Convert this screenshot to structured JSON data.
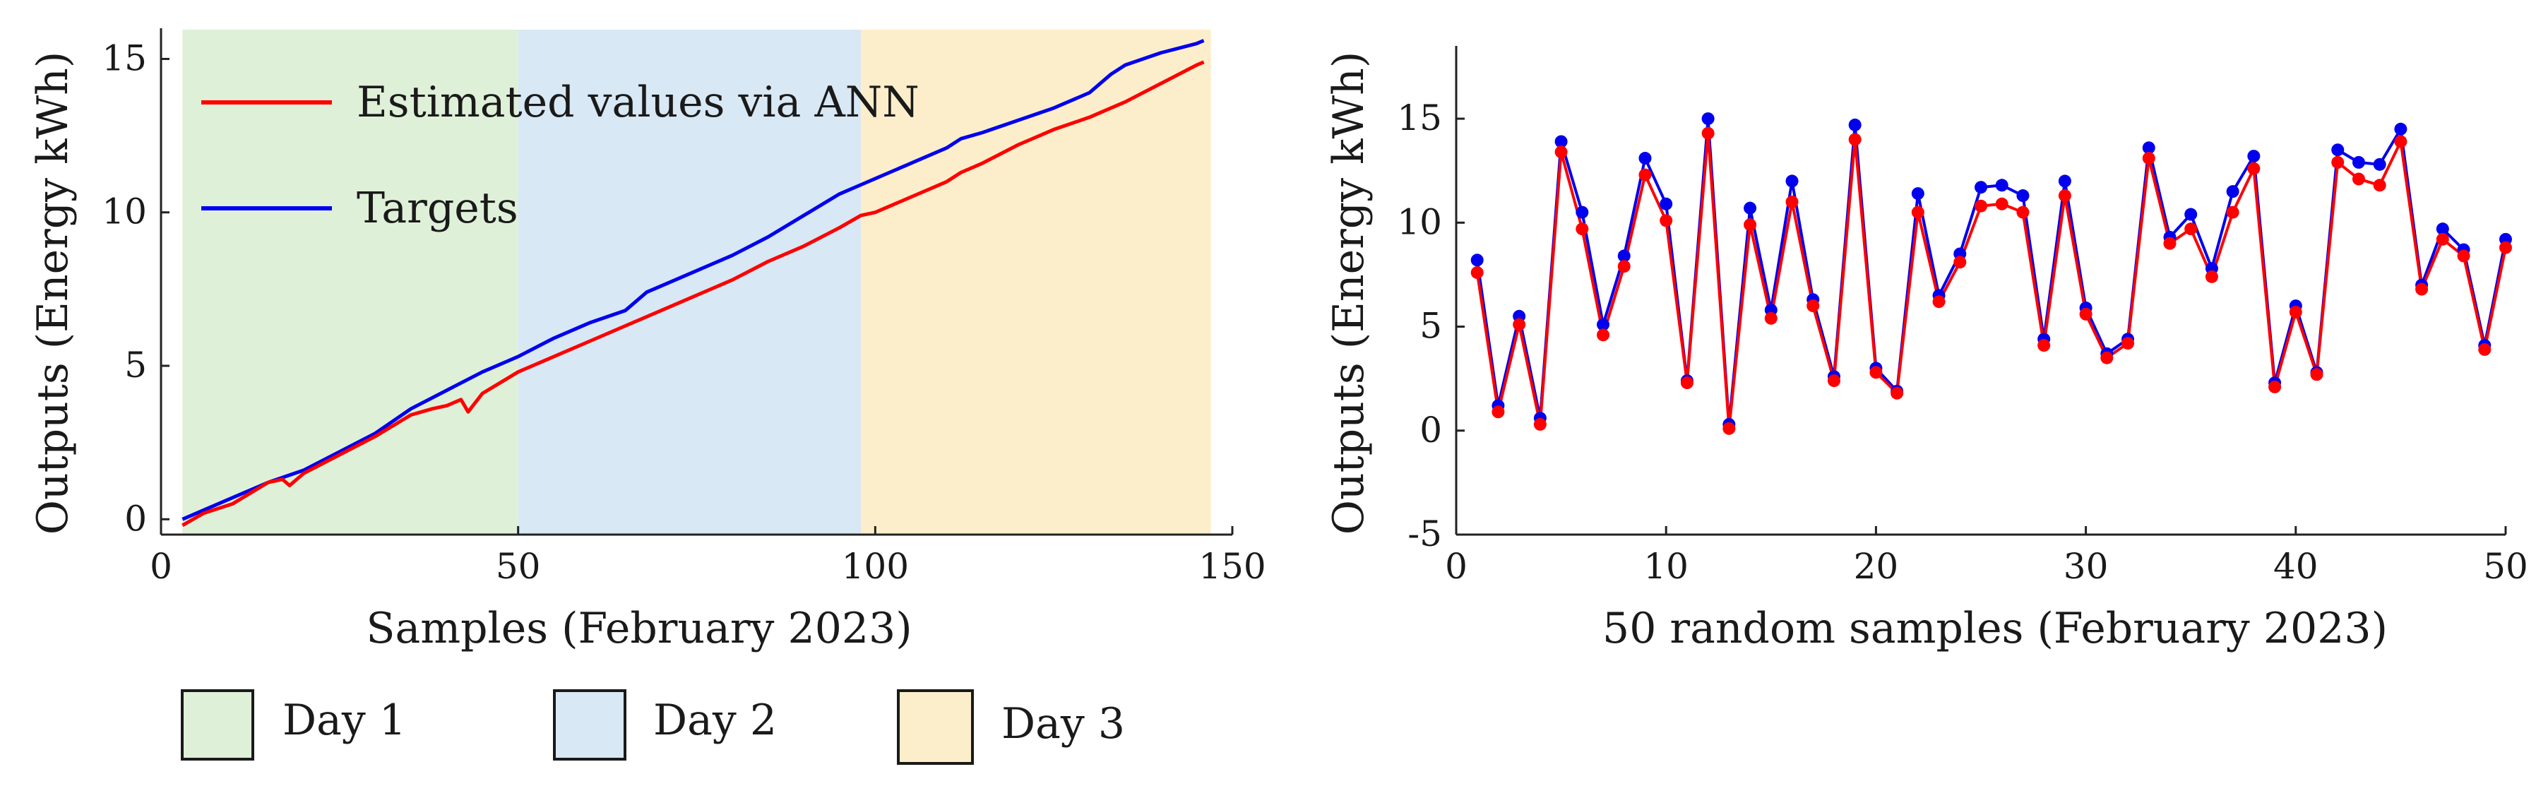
{
  "chart_data": [
    {
      "type": "line",
      "xlabel": "Samples (February 2023)",
      "ylabel": "Outputs (Energy kWh)",
      "xlim": [
        0,
        150
      ],
      "ylim": [
        -0.5,
        16
      ],
      "xticks": [
        "0",
        "50",
        "100",
        "150"
      ],
      "yticks": [
        "0",
        "5",
        "10",
        "15"
      ],
      "grid": false,
      "bands": [
        {
          "name": "Day 1",
          "x_start": 3,
          "x_end": 50,
          "color": "#dff0d8"
        },
        {
          "name": "Day 2",
          "x_start": 50,
          "x_end": 98,
          "color": "#d8e8f4"
        },
        {
          "name": "Day 3",
          "x_start": 98,
          "x_end": 147,
          "color": "#fdeecb"
        }
      ],
      "legend": {
        "placement": "top-left",
        "entries": [
          "Estimated values via ANN",
          "Targets"
        ]
      },
      "series": [
        {
          "name": "Estimated values via ANN",
          "color": "#ff0000",
          "x": [
            3,
            6,
            10,
            15,
            17,
            18,
            20,
            25,
            30,
            35,
            38,
            40,
            42,
            43,
            45,
            50,
            55,
            60,
            65,
            70,
            75,
            80,
            85,
            90,
            95,
            98,
            100,
            105,
            110,
            112,
            115,
            120,
            125,
            130,
            132,
            135,
            140,
            145,
            146
          ],
          "values": [
            -0.2,
            0.2,
            0.5,
            1.2,
            1.3,
            1.1,
            1.5,
            2.1,
            2.7,
            3.4,
            3.6,
            3.7,
            3.9,
            3.5,
            4.1,
            4.8,
            5.3,
            5.8,
            6.3,
            6.8,
            7.3,
            7.8,
            8.4,
            8.9,
            9.5,
            9.9,
            10.0,
            10.5,
            11.0,
            11.3,
            11.6,
            12.2,
            12.7,
            13.1,
            13.3,
            13.6,
            14.2,
            14.8,
            14.9
          ]
        },
        {
          "name": "Targets",
          "color": "#0000ee",
          "x": [
            3,
            5,
            10,
            15,
            20,
            25,
            30,
            35,
            40,
            45,
            50,
            55,
            60,
            65,
            68,
            70,
            75,
            80,
            85,
            90,
            95,
            98,
            100,
            105,
            110,
            112,
            115,
            120,
            125,
            130,
            133,
            135,
            140,
            145,
            146
          ],
          "values": [
            0.0,
            0.2,
            0.7,
            1.2,
            1.6,
            2.2,
            2.8,
            3.6,
            4.2,
            4.8,
            5.3,
            5.9,
            6.4,
            6.8,
            7.4,
            7.6,
            8.1,
            8.6,
            9.2,
            9.9,
            10.6,
            10.9,
            11.1,
            11.6,
            12.1,
            12.4,
            12.6,
            13.0,
            13.4,
            13.9,
            14.5,
            14.8,
            15.2,
            15.5,
            15.6
          ]
        }
      ]
    },
    {
      "type": "line",
      "xlabel": "50 random samples (February 2023)",
      "ylabel": "Outputs (Energy kWh)",
      "xlim": [
        0,
        50
      ],
      "ylim": [
        -5,
        18.5
      ],
      "xticks": [
        "0",
        "10",
        "20",
        "30",
        "40",
        "50"
      ],
      "yticks": [
        "-5",
        "0",
        "5",
        "10",
        "15"
      ],
      "grid": false,
      "markers": true,
      "series": [
        {
          "name": "Targets",
          "color": "#0000ee",
          "x": [
            1,
            2,
            3,
            4,
            5,
            6,
            7,
            8,
            9,
            10,
            11,
            12,
            13,
            14,
            15,
            16,
            17,
            18,
            19,
            20,
            21,
            22,
            23,
            24,
            25,
            26,
            27,
            28,
            29,
            30,
            31,
            32,
            33,
            34,
            35,
            36,
            37,
            38,
            39,
            40,
            41,
            42,
            43,
            44,
            45,
            46,
            47,
            48,
            49,
            50
          ],
          "values": [
            8.2,
            1.2,
            5.5,
            0.6,
            13.9,
            10.5,
            5.1,
            8.4,
            13.1,
            10.9,
            2.4,
            15.0,
            0.3,
            10.7,
            5.8,
            12.0,
            6.3,
            2.6,
            14.7,
            3.0,
            1.9,
            11.4,
            6.5,
            8.5,
            11.7,
            11.8,
            11.3,
            4.4,
            12.0,
            5.9,
            3.7,
            4.4,
            13.6,
            9.3,
            10.4,
            7.8,
            11.5,
            13.2,
            2.3,
            6.0,
            2.8,
            13.5,
            12.9,
            12.8,
            14.5,
            7.0,
            9.7,
            8.7,
            4.1,
            9.2
          ]
        },
        {
          "name": "Estimated values via ANN",
          "color": "#ff0000",
          "x": [
            1,
            2,
            3,
            4,
            5,
            6,
            7,
            8,
            9,
            10,
            11,
            12,
            13,
            14,
            15,
            16,
            17,
            18,
            19,
            20,
            21,
            22,
            23,
            24,
            25,
            26,
            27,
            28,
            29,
            30,
            31,
            32,
            33,
            34,
            35,
            36,
            37,
            38,
            39,
            40,
            41,
            42,
            43,
            44,
            45,
            46,
            47,
            48,
            49,
            50
          ],
          "values": [
            7.6,
            0.9,
            5.1,
            0.3,
            13.4,
            9.7,
            4.6,
            7.9,
            12.3,
            10.1,
            2.3,
            14.3,
            0.1,
            9.9,
            5.4,
            11.0,
            6.0,
            2.4,
            14.0,
            2.8,
            1.8,
            10.5,
            6.2,
            8.1,
            10.8,
            10.9,
            10.5,
            4.1,
            11.3,
            5.6,
            3.5,
            4.2,
            13.1,
            9.0,
            9.7,
            7.4,
            10.5,
            12.6,
            2.1,
            5.7,
            2.7,
            12.9,
            12.1,
            11.8,
            13.9,
            6.8,
            9.2,
            8.4,
            3.9,
            8.8
          ]
        }
      ]
    }
  ]
}
